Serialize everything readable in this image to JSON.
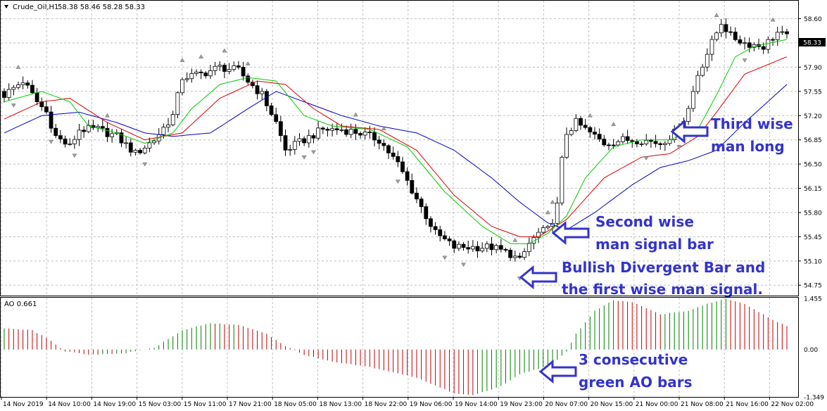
{
  "header": {
    "symbol_label": "Crude_Oil,H1",
    "ohlc_label": "58.38 58.46 58.28 58.33"
  },
  "indicator_label": "AO 0.661",
  "price_tag": "58.33",
  "colors": {
    "bull_candle": "#ffffff",
    "bear_candle": "#000000",
    "alligator_jaw": "#0000cc",
    "alligator_teeth": "#dd0000",
    "alligator_lips": "#00cc00",
    "ao_up": "#008000",
    "ao_down": "#c00000",
    "annotation": "#3333cc",
    "grid": "#c0c0c0"
  },
  "annotations": {
    "third": [
      "Third wise",
      "man long"
    ],
    "second": [
      "Second wise",
      "man signal bar"
    ],
    "bdb": [
      "Bullish Divergent Bar and",
      "the first wise man signal."
    ],
    "ao": [
      "3 consecutive",
      "green AO bars"
    ]
  },
  "chart_data": [
    {
      "type": "candlestick",
      "title": "Crude_Oil,H1",
      "ylim": [
        54.6,
        58.85
      ],
      "y_ticks": [
        "58.60",
        "58.25",
        "57.90",
        "57.55",
        "57.20",
        "56.85",
        "56.50",
        "56.15",
        "55.80",
        "55.45",
        "55.10",
        "54.75"
      ],
      "x_ticks": [
        "14 Nov 2019",
        "14 Nov 10:00",
        "14 Nov 19:00",
        "15 Nov 03:00",
        "15 Nov 11:00",
        "17 Nov 21:00",
        "18 Nov 05:00",
        "18 Nov 13:00",
        "18 Nov 22:00",
        "19 Nov 06:00",
        "19 Nov 14:00",
        "19 Nov 23:00",
        "20 Nov 07:00",
        "20 Nov 15:00",
        "21 Nov 00:00",
        "21 Nov 08:00",
        "21 Nov 16:00",
        "22 Nov 02:00"
      ],
      "close_path": [
        [
          0,
          57.5
        ],
        [
          4,
          57.7
        ],
        [
          7,
          57.4
        ],
        [
          9,
          57.25
        ],
        [
          11,
          56.9
        ],
        [
          14,
          56.75
        ],
        [
          16,
          57.0
        ],
        [
          20,
          57.0
        ],
        [
          24,
          56.9
        ],
        [
          28,
          56.65
        ],
        [
          32,
          56.85
        ],
        [
          36,
          57.2
        ],
        [
          38,
          57.75
        ],
        [
          42,
          57.8
        ],
        [
          46,
          57.9
        ],
        [
          50,
          57.85
        ],
        [
          52,
          57.7
        ],
        [
          55,
          57.5
        ],
        [
          58,
          57.1
        ],
        [
          60,
          56.7
        ],
        [
          64,
          56.85
        ],
        [
          68,
          57.0
        ],
        [
          72,
          57.0
        ],
        [
          76,
          56.95
        ],
        [
          80,
          56.85
        ],
        [
          84,
          56.5
        ],
        [
          88,
          56.0
        ],
        [
          92,
          55.5
        ],
        [
          96,
          55.3
        ],
        [
          100,
          55.3
        ],
        [
          104,
          55.3
        ],
        [
          108,
          55.2
        ],
        [
          110,
          55.1
        ],
        [
          112,
          55.35
        ],
        [
          114,
          55.5
        ],
        [
          116,
          55.55
        ],
        [
          117,
          55.7
        ],
        [
          118,
          55.9
        ],
        [
          119,
          56.55
        ],
        [
          120,
          56.95
        ],
        [
          122,
          57.1
        ],
        [
          124,
          57.0
        ],
        [
          128,
          56.8
        ],
        [
          132,
          56.85
        ],
        [
          136,
          56.85
        ],
        [
          140,
          56.8
        ],
        [
          142,
          56.9
        ],
        [
          144,
          57.0
        ],
        [
          146,
          57.3
        ],
        [
          148,
          57.8
        ],
        [
          150,
          58.1
        ],
        [
          152,
          58.4
        ],
        [
          153,
          58.55
        ],
        [
          155,
          58.35
        ],
        [
          158,
          58.25
        ],
        [
          162,
          58.2
        ],
        [
          165,
          58.4
        ],
        [
          167,
          58.33
        ]
      ],
      "alligator": {
        "jaw_path": [
          [
            0,
            56.95
          ],
          [
            8,
            57.2
          ],
          [
            16,
            57.25
          ],
          [
            24,
            57.1
          ],
          [
            30,
            56.95
          ],
          [
            36,
            56.9
          ],
          [
            44,
            56.95
          ],
          [
            52,
            57.3
          ],
          [
            58,
            57.55
          ],
          [
            64,
            57.4
          ],
          [
            72,
            57.2
          ],
          [
            80,
            57.05
          ],
          [
            88,
            56.95
          ],
          [
            96,
            56.7
          ],
          [
            104,
            56.3
          ],
          [
            110,
            55.95
          ],
          [
            116,
            55.65
          ],
          [
            120,
            55.55
          ],
          [
            126,
            55.8
          ],
          [
            134,
            56.2
          ],
          [
            140,
            56.45
          ],
          [
            146,
            56.55
          ],
          [
            152,
            56.7
          ],
          [
            158,
            57.1
          ],
          [
            167,
            57.65
          ]
        ],
        "teeth_path": [
          [
            0,
            57.15
          ],
          [
            8,
            57.4
          ],
          [
            14,
            57.45
          ],
          [
            22,
            57.1
          ],
          [
            30,
            56.85
          ],
          [
            38,
            56.95
          ],
          [
            46,
            57.45
          ],
          [
            54,
            57.7
          ],
          [
            60,
            57.65
          ],
          [
            66,
            57.3
          ],
          [
            72,
            57.05
          ],
          [
            80,
            57.0
          ],
          [
            88,
            56.7
          ],
          [
            96,
            56.05
          ],
          [
            104,
            55.6
          ],
          [
            110,
            55.45
          ],
          [
            114,
            55.45
          ],
          [
            120,
            55.7
          ],
          [
            128,
            56.3
          ],
          [
            136,
            56.6
          ],
          [
            142,
            56.65
          ],
          [
            148,
            56.9
          ],
          [
            152,
            57.25
          ],
          [
            158,
            57.8
          ],
          [
            167,
            58.05
          ]
        ],
        "lips_path": [
          [
            0,
            57.4
          ],
          [
            8,
            57.55
          ],
          [
            14,
            57.4
          ],
          [
            18,
            57.05
          ],
          [
            24,
            56.95
          ],
          [
            30,
            56.8
          ],
          [
            36,
            56.95
          ],
          [
            40,
            57.3
          ],
          [
            46,
            57.65
          ],
          [
            52,
            57.75
          ],
          [
            58,
            57.7
          ],
          [
            64,
            57.2
          ],
          [
            70,
            57.05
          ],
          [
            78,
            57.0
          ],
          [
            86,
            56.75
          ],
          [
            94,
            56.1
          ],
          [
            102,
            55.6
          ],
          [
            108,
            55.35
          ],
          [
            112,
            55.35
          ],
          [
            116,
            55.5
          ],
          [
            120,
            55.75
          ],
          [
            124,
            56.3
          ],
          [
            130,
            56.75
          ],
          [
            136,
            56.85
          ],
          [
            142,
            56.85
          ],
          [
            148,
            57.0
          ],
          [
            152,
            57.5
          ],
          [
            156,
            58.05
          ],
          [
            160,
            58.2
          ],
          [
            167,
            58.3
          ]
        ]
      },
      "fractal_up_bars": [
        3,
        22,
        38,
        42,
        47,
        52,
        75,
        81,
        109,
        116,
        117,
        125,
        130,
        152,
        164
      ],
      "fractal_down_bars": [
        2,
        10,
        15,
        30,
        64,
        66,
        84,
        94,
        98,
        110,
        137,
        144,
        158
      ]
    },
    {
      "type": "bar",
      "title": "AO 0.661",
      "ylim": [
        -1.349,
        1.455
      ],
      "y_ticks": [
        "1.455",
        "0.00",
        "-1.349"
      ],
      "ao_path": [
        [
          0,
          0.6
        ],
        [
          6,
          0.55
        ],
        [
          10,
          0.25
        ],
        [
          13,
          -0.05
        ],
        [
          18,
          -0.15
        ],
        [
          26,
          -0.1
        ],
        [
          32,
          0.05
        ],
        [
          38,
          0.55
        ],
        [
          44,
          0.75
        ],
        [
          50,
          0.7
        ],
        [
          56,
          0.45
        ],
        [
          60,
          0.1
        ],
        [
          64,
          -0.15
        ],
        [
          70,
          -0.35
        ],
        [
          78,
          -0.5
        ],
        [
          88,
          -0.8
        ],
        [
          96,
          -1.25
        ],
        [
          100,
          -1.3
        ],
        [
          106,
          -1.05
        ],
        [
          110,
          -0.7
        ],
        [
          114,
          -0.55
        ],
        [
          118,
          -0.3
        ],
        [
          120,
          -0.05
        ],
        [
          122,
          0.45
        ],
        [
          126,
          1.1
        ],
        [
          130,
          1.4
        ],
        [
          134,
          1.35
        ],
        [
          140,
          1.0
        ],
        [
          146,
          1.1
        ],
        [
          150,
          1.3
        ],
        [
          154,
          1.45
        ],
        [
          158,
          1.3
        ],
        [
          164,
          0.85
        ],
        [
          167,
          0.66
        ]
      ],
      "num_bars": 168
    }
  ]
}
